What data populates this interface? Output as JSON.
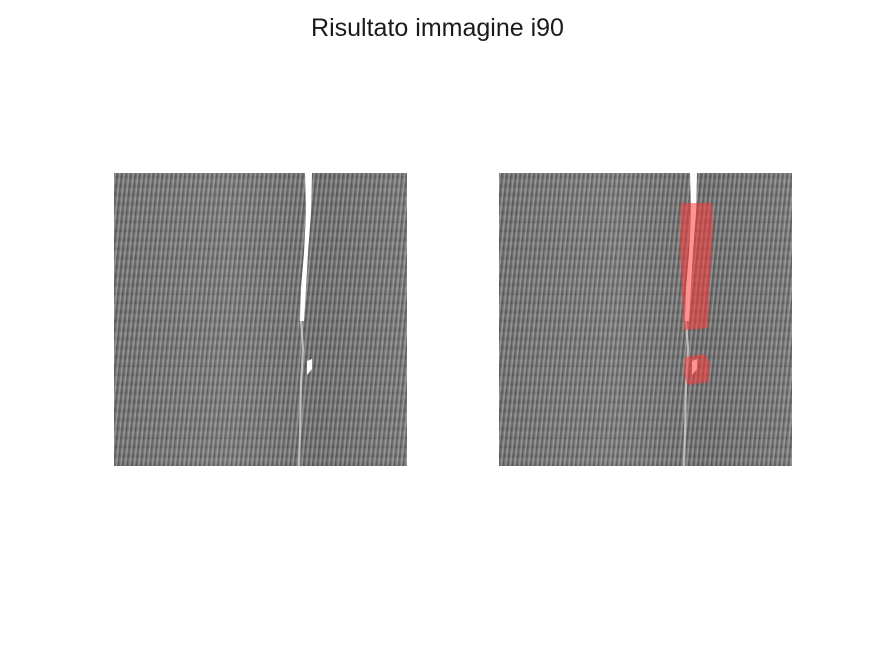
{
  "figure": {
    "title": "Risultato immagine i90"
  },
  "panels": [
    {
      "id": "original",
      "overlay": false
    },
    {
      "id": "result",
      "overlay": true
    }
  ],
  "colors": {
    "background": "#ffffff",
    "defect": "#ffffff",
    "highlight": "#ff3b3b"
  }
}
